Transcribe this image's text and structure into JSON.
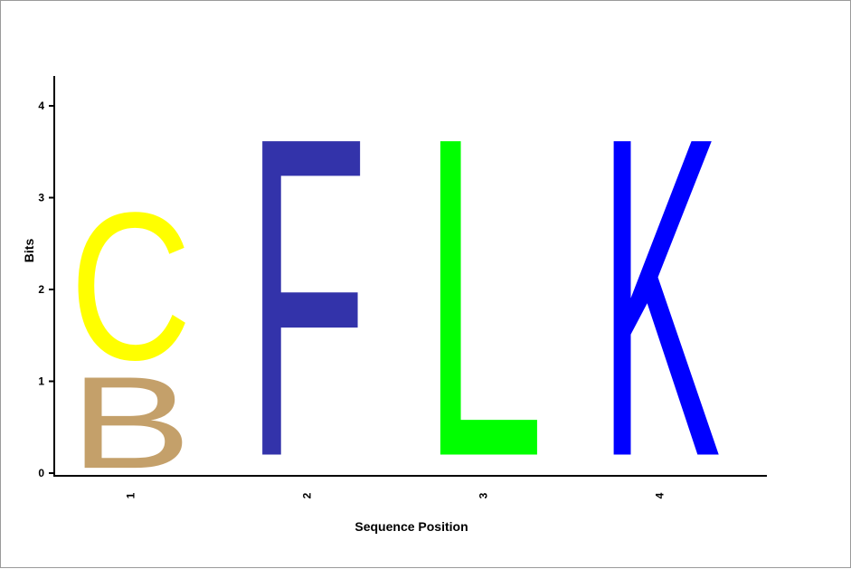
{
  "chart_data": {
    "type": "sequence-logo",
    "xlabel": "Sequence Position",
    "ylabel": "Bits",
    "ylim": [
      0,
      4
    ],
    "yticks": [
      "0",
      "1",
      "2",
      "3",
      "4"
    ],
    "positions": [
      {
        "label": "1",
        "letters": [
          {
            "char": "B",
            "bits": 1.15,
            "color": "#c4a06a"
          },
          {
            "char": "C",
            "bits": 1.85,
            "color": "#ffff00"
          }
        ]
      },
      {
        "label": "2",
        "letters": [
          {
            "char": "F",
            "bits": 4.0,
            "color": "#3333aa"
          }
        ]
      },
      {
        "label": "3",
        "letters": [
          {
            "char": "L",
            "bits": 4.0,
            "color": "#00ff00"
          }
        ]
      },
      {
        "label": "4",
        "letters": [
          {
            "char": "K",
            "bits": 4.0,
            "color": "#0000ff"
          }
        ]
      }
    ]
  }
}
